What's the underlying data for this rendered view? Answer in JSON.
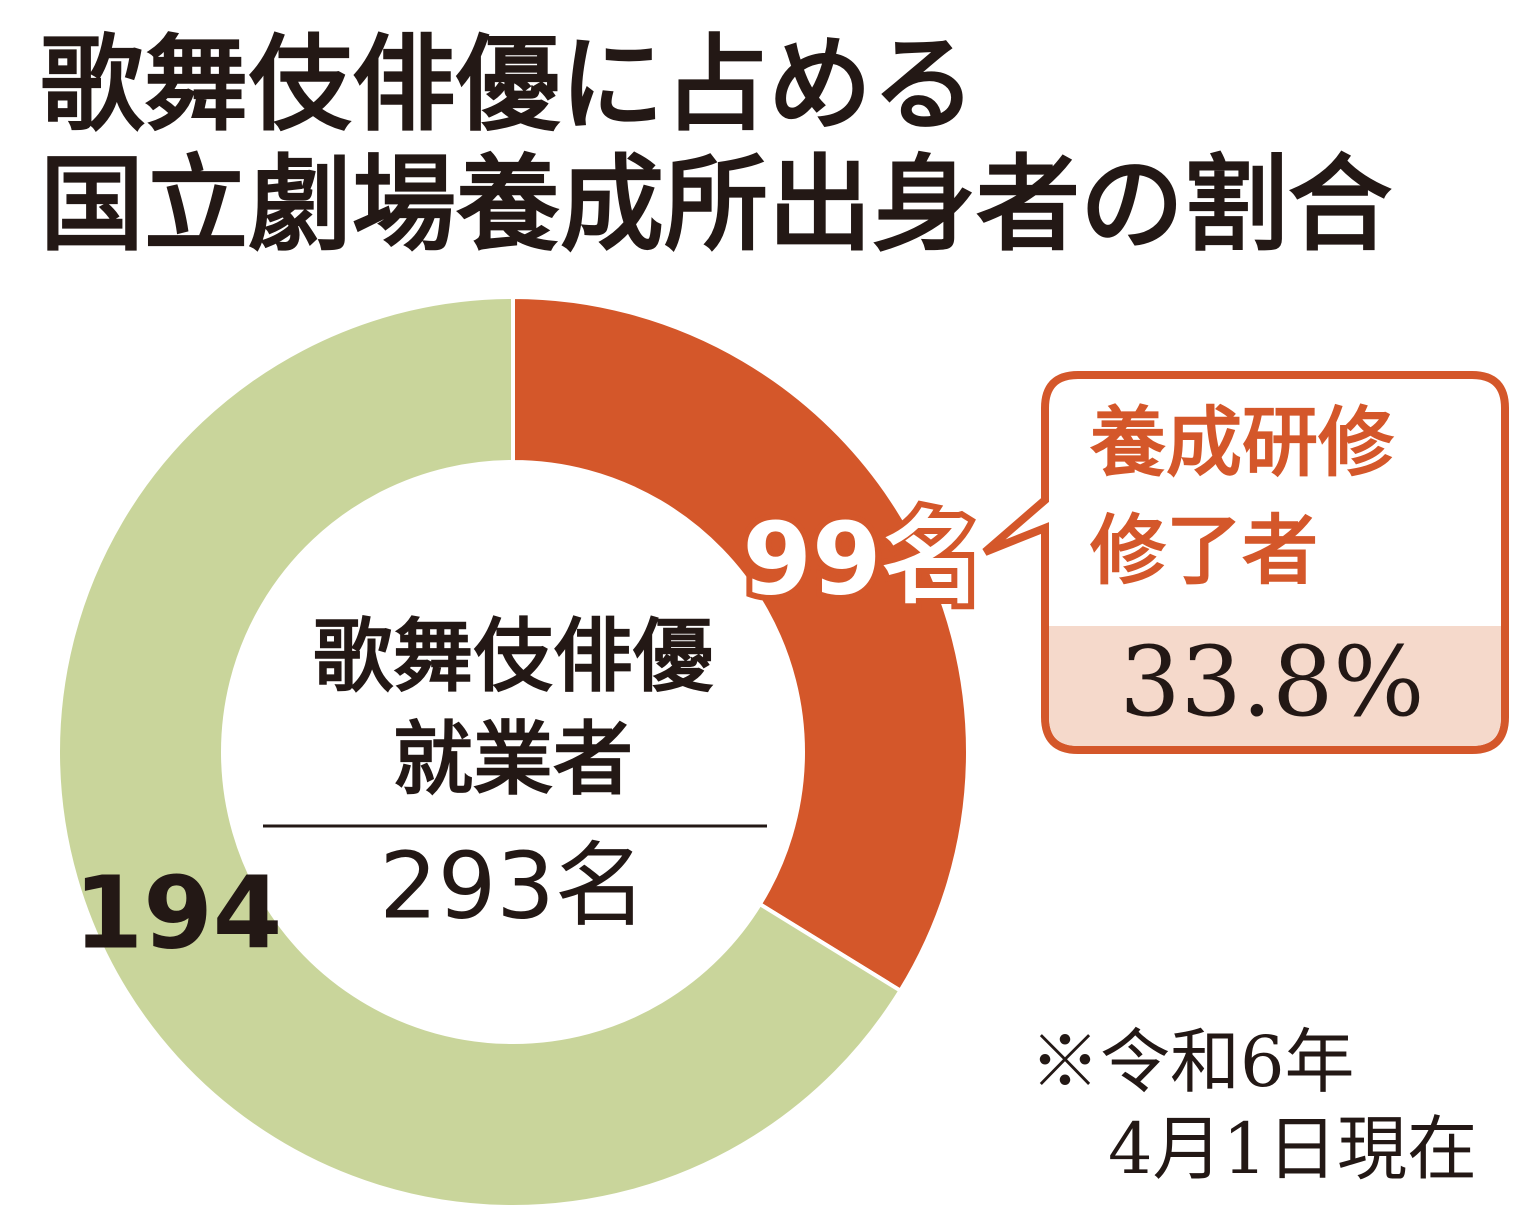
{
  "chart_data": {
    "type": "donut",
    "title": [
      "歌舞伎俳優に占める",
      "国立劇場養成所出身者の割合"
    ],
    "values": [
      99,
      194
    ],
    "value_labels": [
      "99名",
      "194"
    ],
    "colors": [
      "#d4572a",
      "#c9d59b"
    ],
    "center_label": [
      "歌舞伎俳優",
      "就業者"
    ],
    "total_label": "293名",
    "callout": {
      "text": [
        "養成研修",
        "修了者"
      ],
      "percent": "33.8%"
    },
    "note": [
      "※令和6年",
      "4月1日現在"
    ]
  }
}
